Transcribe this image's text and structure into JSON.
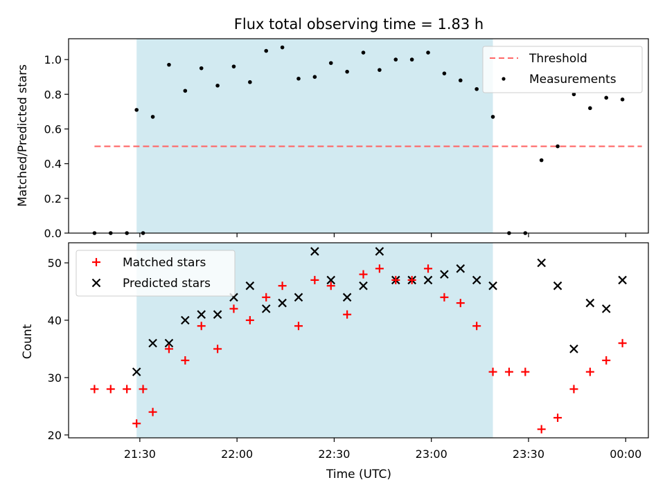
{
  "colors": {
    "span": "#add8e6",
    "threshold": "#ff6666",
    "measurement": "#000000",
    "matched": "#ff0000",
    "predicted": "#000000"
  },
  "chart_data": [
    {
      "type": "scatter",
      "title": "Flux total observing time = 1.83 h",
      "xlabel": "",
      "ylabel": "Matched/Predicted stars",
      "ylim": [
        0,
        1.12
      ],
      "yticks": [
        "0.0",
        "0.2",
        "0.4",
        "0.6",
        "0.8",
        "1.0"
      ],
      "xlim": [
        "21:08",
        "00:07"
      ],
      "legend_position": "top-right",
      "shaded_span": {
        "start": "21:29",
        "end": "23:19"
      },
      "threshold": {
        "name": "Threshold",
        "value": 0.5,
        "x_start": "21:16",
        "x_end": "00:05"
      },
      "series": [
        {
          "name": "Measurements",
          "marker": "dot",
          "points": [
            {
              "x": "21:16",
              "y": 0.0
            },
            {
              "x": "21:21",
              "y": 0.0
            },
            {
              "x": "21:26",
              "y": 0.0
            },
            {
              "x": "21:31",
              "y": 0.0
            },
            {
              "x": "21:29",
              "y": 0.71
            },
            {
              "x": "21:34",
              "y": 0.67
            },
            {
              "x": "21:39",
              "y": 0.97
            },
            {
              "x": "21:44",
              "y": 0.82
            },
            {
              "x": "21:49",
              "y": 0.95
            },
            {
              "x": "21:54",
              "y": 0.85
            },
            {
              "x": "21:59",
              "y": 0.96
            },
            {
              "x": "22:04",
              "y": 0.87
            },
            {
              "x": "22:09",
              "y": 1.05
            },
            {
              "x": "22:14",
              "y": 1.07
            },
            {
              "x": "22:19",
              "y": 0.89
            },
            {
              "x": "22:24",
              "y": 0.9
            },
            {
              "x": "22:29",
              "y": 0.98
            },
            {
              "x": "22:34",
              "y": 0.93
            },
            {
              "x": "22:39",
              "y": 1.04
            },
            {
              "x": "22:44",
              "y": 0.94
            },
            {
              "x": "22:49",
              "y": 1.0
            },
            {
              "x": "22:54",
              "y": 1.0
            },
            {
              "x": "22:59",
              "y": 1.04
            },
            {
              "x": "23:04",
              "y": 0.92
            },
            {
              "x": "23:09",
              "y": 0.88
            },
            {
              "x": "23:14",
              "y": 0.83
            },
            {
              "x": "23:19",
              "y": 0.67
            },
            {
              "x": "23:24",
              "y": 0.0
            },
            {
              "x": "23:29",
              "y": 0.0
            },
            {
              "x": "23:34",
              "y": 0.42
            },
            {
              "x": "23:39",
              "y": 0.5
            },
            {
              "x": "23:44",
              "y": 0.8
            },
            {
              "x": "23:49",
              "y": 0.72
            },
            {
              "x": "23:54",
              "y": 0.78
            },
            {
              "x": "23:59",
              "y": 0.77
            }
          ]
        }
      ]
    },
    {
      "type": "scatter",
      "title": "",
      "xlabel": "Time (UTC)",
      "ylabel": "Count",
      "ylim": [
        19.5,
        53.5
      ],
      "yticks": [
        "20",
        "30",
        "40",
        "50"
      ],
      "xlim": [
        "21:08",
        "00:07"
      ],
      "xticks": [
        "21:30",
        "22:00",
        "22:30",
        "23:00",
        "23:30",
        "00:00"
      ],
      "legend_position": "top-left",
      "shaded_span": {
        "start": "21:29",
        "end": "23:19"
      },
      "x": [
        "21:16",
        "21:21",
        "21:26",
        "21:31",
        "21:29",
        "21:34",
        "21:39",
        "21:44",
        "21:49",
        "21:54",
        "21:59",
        "22:04",
        "22:09",
        "22:14",
        "22:19",
        "22:24",
        "22:29",
        "22:34",
        "22:39",
        "22:44",
        "22:49",
        "22:54",
        "22:59",
        "23:04",
        "23:09",
        "23:14",
        "23:19",
        "23:24",
        "23:29",
        "23:34",
        "23:39",
        "23:44",
        "23:49",
        "23:54",
        "23:59"
      ],
      "series": [
        {
          "name": "Matched stars",
          "marker": "plus",
          "values": [
            28,
            28,
            28,
            28,
            22,
            24,
            35,
            33,
            39,
            35,
            42,
            40,
            44,
            46,
            39,
            47,
            46,
            41,
            48,
            49,
            47,
            47,
            49,
            44,
            43,
            39,
            31,
            31,
            31,
            21,
            23,
            28,
            31,
            33,
            36
          ]
        },
        {
          "name": "Predicted stars",
          "marker": "x",
          "values": [
            null,
            null,
            null,
            null,
            31,
            36,
            36,
            40,
            41,
            41,
            44,
            46,
            42,
            43,
            44,
            52,
            47,
            44,
            46,
            52,
            47,
            47,
            47,
            48,
            49,
            47,
            46,
            null,
            null,
            50,
            46,
            35,
            43,
            42,
            47
          ]
        }
      ]
    }
  ]
}
